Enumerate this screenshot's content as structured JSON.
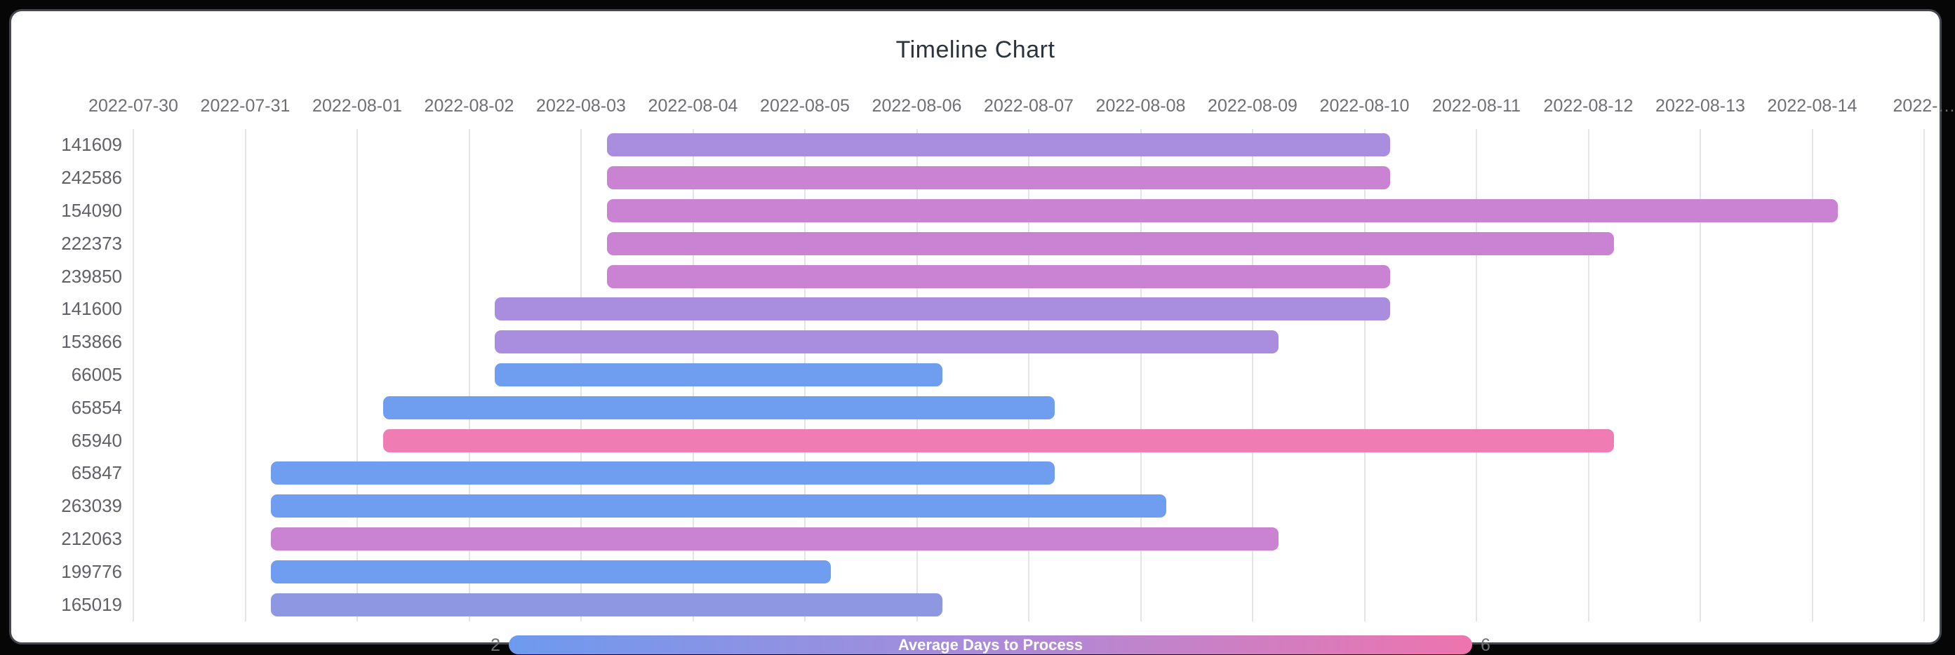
{
  "chart_data": {
    "type": "timeline",
    "title": "Timeline Chart",
    "x_axis": {
      "start_date": "2022-07-30",
      "span_days": 16,
      "grid": true,
      "tick_labels": [
        "2022-07-30",
        "2022-07-31",
        "2022-08-01",
        "2022-08-02",
        "2022-08-03",
        "2022-08-04",
        "2022-08-05",
        "2022-08-06",
        "2022-08-07",
        "2022-08-08",
        "2022-08-09",
        "2022-08-10",
        "2022-08-11",
        "2022-08-12",
        "2022-08-13",
        "2022-08-14",
        "2022-…"
      ]
    },
    "bars_time_of_day_offset_days": 0.23,
    "rows": [
      {
        "id": "141609",
        "start": "2022-08-03",
        "end": "2022-08-10",
        "duration_days": 7,
        "color": "#a98dde"
      },
      {
        "id": "242586",
        "start": "2022-08-03",
        "end": "2022-08-10",
        "duration_days": 7,
        "color": "#c983d2"
      },
      {
        "id": "154090",
        "start": "2022-08-03",
        "end": "2022-08-14",
        "duration_days": 11,
        "color": "#c983d2"
      },
      {
        "id": "222373",
        "start": "2022-08-03",
        "end": "2022-08-12",
        "duration_days": 9,
        "color": "#c983d2"
      },
      {
        "id": "239850",
        "start": "2022-08-03",
        "end": "2022-08-10",
        "duration_days": 7,
        "color": "#c983d2"
      },
      {
        "id": "141600",
        "start": "2022-08-02",
        "end": "2022-08-10",
        "duration_days": 8,
        "color": "#a98dde"
      },
      {
        "id": "153866",
        "start": "2022-08-02",
        "end": "2022-08-09",
        "duration_days": 7,
        "color": "#a98dde"
      },
      {
        "id": "66005",
        "start": "2022-08-02",
        "end": "2022-08-06",
        "duration_days": 4,
        "color": "#6f9ef1"
      },
      {
        "id": "65854",
        "start": "2022-08-01",
        "end": "2022-08-07",
        "duration_days": 6,
        "color": "#6f9ef1"
      },
      {
        "id": "65940",
        "start": "2022-08-01",
        "end": "2022-08-12",
        "duration_days": 11,
        "color": "#ef7cb3"
      },
      {
        "id": "65847",
        "start": "2022-07-31",
        "end": "2022-08-07",
        "duration_days": 7,
        "color": "#6f9ef1"
      },
      {
        "id": "263039",
        "start": "2022-07-31",
        "end": "2022-08-08",
        "duration_days": 8,
        "color": "#6f9ef1"
      },
      {
        "id": "212063",
        "start": "2022-07-31",
        "end": "2022-08-09",
        "duration_days": 9,
        "color": "#c983d2"
      },
      {
        "id": "199776",
        "start": "2022-07-31",
        "end": "2022-08-05",
        "duration_days": 5,
        "color": "#6f9ef1"
      },
      {
        "id": "165019",
        "start": "2022-07-31",
        "end": "2022-08-06",
        "duration_days": 6,
        "color": "#8e97e2"
      }
    ],
    "legend": {
      "title": "Average Days to Process",
      "min_label": "2",
      "max_label": "6",
      "gradient": [
        "#6d9aef",
        "#aa8bd9",
        "#ee74ae"
      ]
    },
    "palette": {
      "grid": "#e3e3e8",
      "axis_text": "#6f6f73",
      "row_label_text": "#606066",
      "title_text": "#2b333c",
      "frame": "#060606",
      "frame_border": "#44484d",
      "card_bg": "#ffffff"
    }
  }
}
